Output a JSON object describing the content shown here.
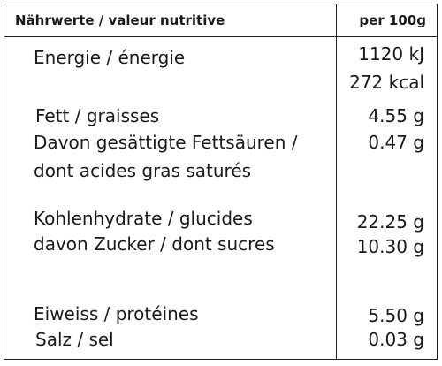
{
  "header": {
    "label": "Nährwerte / valeur nutritive",
    "unit": "per 100g"
  },
  "rows": {
    "energy_label": "Energie / énergie",
    "energy_kj": "1120 kJ",
    "energy_kcal": "272 kcal",
    "fat_label": "Fett / graisses",
    "fat_value": "4.55 g",
    "sat_label_1": "Davon gesättigte Fettsäuren /",
    "sat_label_2": "dont acides gras saturés",
    "sat_value": "0.47 g",
    "carb_label": "Kohlenhydrate / glucides",
    "carb_value": "22.25 g",
    "sugar_label": "davon Zucker / dont sucres",
    "sugar_value": "10.30 g",
    "protein_label": "Eiweiss / protéines",
    "protein_value": "5.50 g",
    "salt_label": "Salz / sel",
    "salt_value": "0.03 g"
  }
}
